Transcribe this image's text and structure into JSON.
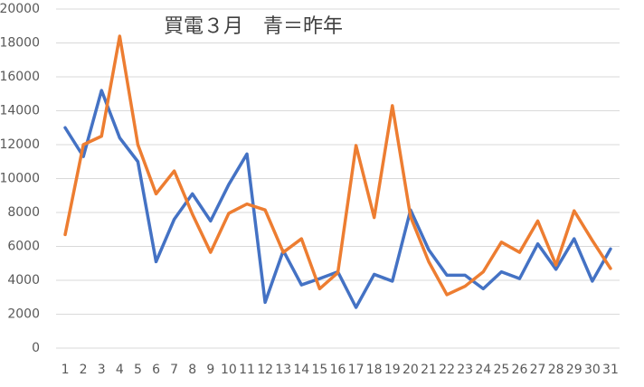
{
  "chart_data": {
    "type": "line",
    "title": "買電３月　青＝昨年",
    "categories": [
      "1",
      "2",
      "3",
      "4",
      "5",
      "6",
      "7",
      "8",
      "9",
      "10",
      "11",
      "12",
      "13",
      "14",
      "15",
      "16",
      "17",
      "18",
      "19",
      "20",
      "21",
      "22",
      "23",
      "24",
      "25",
      "26",
      "27",
      "28",
      "29",
      "30",
      "31"
    ],
    "series": [
      {
        "color": "#4472c4",
        "values": [
          13000,
          11300,
          15200,
          12400,
          11000,
          5100,
          7600,
          9100,
          7500,
          9650,
          11450,
          2700,
          5750,
          3730,
          4100,
          4500,
          2400,
          4350,
          3950,
          8150,
          5800,
          4300,
          4300,
          3500,
          4500,
          4100,
          6150,
          4650,
          6450,
          3950,
          5850
        ]
      },
      {
        "color": "#ed7d31",
        "values": [
          6700,
          12000,
          12500,
          18400,
          12000,
          9100,
          10450,
          7900,
          5650,
          7950,
          8500,
          8150,
          5650,
          6450,
          3500,
          4450,
          11950,
          7700,
          14300,
          7750,
          5100,
          3150,
          3650,
          4500,
          6250,
          5650,
          7500,
          4900,
          8100,
          6350,
          4700
        ]
      }
    ],
    "ylim": [
      0,
      20000
    ],
    "yticks": [
      0,
      2000,
      4000,
      6000,
      8000,
      10000,
      12000,
      14000,
      16000,
      18000,
      20000
    ],
    "grid": true
  }
}
